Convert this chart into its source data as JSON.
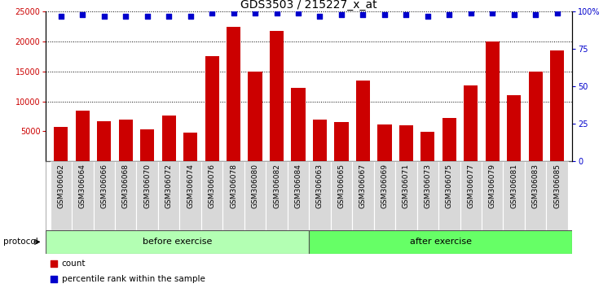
{
  "title": "GDS3503 / 215227_x_at",
  "categories": [
    "GSM306062",
    "GSM306064",
    "GSM306066",
    "GSM306068",
    "GSM306070",
    "GSM306072",
    "GSM306074",
    "GSM306076",
    "GSM306078",
    "GSM306080",
    "GSM306082",
    "GSM306084",
    "GSM306063",
    "GSM306065",
    "GSM306067",
    "GSM306069",
    "GSM306071",
    "GSM306073",
    "GSM306075",
    "GSM306077",
    "GSM306079",
    "GSM306081",
    "GSM306083",
    "GSM306085"
  ],
  "bar_values": [
    5700,
    8500,
    6700,
    7000,
    5300,
    7700,
    4800,
    17500,
    22500,
    15000,
    21700,
    12300,
    7000,
    6500,
    13500,
    6200,
    6000,
    4900,
    7200,
    12700,
    20000,
    11000,
    15000,
    18500
  ],
  "percentile_values": [
    97,
    98,
    97,
    97,
    97,
    97,
    97,
    99,
    99,
    99,
    99,
    99,
    97,
    98,
    98,
    98,
    98,
    97,
    98,
    99,
    99,
    98,
    98,
    99
  ],
  "bar_color": "#cc0000",
  "dot_color": "#0000cc",
  "ylim_left": [
    0,
    25000
  ],
  "ylim_right": [
    0,
    100
  ],
  "yticks_left": [
    5000,
    10000,
    15000,
    20000,
    25000
  ],
  "yticks_right": [
    0,
    25,
    50,
    75,
    100
  ],
  "ylabel_left_color": "#cc0000",
  "ylabel_right_color": "#0000cc",
  "before_count": 12,
  "after_count": 12,
  "before_label": "before exercise",
  "after_label": "after exercise",
  "protocol_label": "protocol",
  "legend_count_label": "count",
  "legend_percentile_label": "percentile rank within the sample",
  "before_color": "#b3ffb3",
  "after_color": "#66ff66",
  "title_fontsize": 10,
  "tick_fontsize": 7,
  "label_fontsize": 6.5,
  "protocol_fontsize": 8,
  "legend_fontsize": 7.5
}
